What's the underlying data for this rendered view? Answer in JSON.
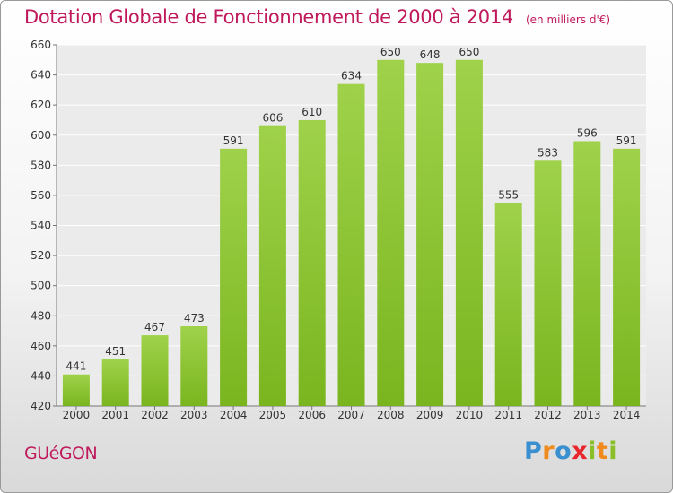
{
  "chart_data": {
    "type": "bar",
    "title": "Dotation Globale de Fonctionnement de 2000 à 2014",
    "subtitle": "(en milliers d'€)",
    "categories": [
      "2000",
      "2001",
      "2002",
      "2003",
      "2004",
      "2005",
      "2006",
      "2007",
      "2008",
      "2009",
      "2010",
      "2011",
      "2012",
      "2013",
      "2014"
    ],
    "values": [
      441,
      451,
      467,
      473,
      591,
      606,
      610,
      634,
      650,
      648,
      650,
      555,
      583,
      596,
      591
    ],
    "ylim": [
      420,
      660
    ],
    "yticks": [
      420,
      440,
      460,
      480,
      500,
      520,
      540,
      560,
      580,
      600,
      620,
      640,
      660
    ],
    "grid": true,
    "bar_color": "#7ab51f",
    "bar_color_light": "#9fd24a"
  },
  "footer": {
    "place": "GUéGON",
    "logo_letters": [
      "P",
      "r",
      "o",
      "x",
      "i",
      "t",
      "i"
    ],
    "logo_colors": [
      "#3a8fd0",
      "#f08a1c",
      "#3a8fd0",
      "#e8262b",
      "#8bbf2a",
      "#f08a1c",
      "#8bbf2a"
    ]
  }
}
